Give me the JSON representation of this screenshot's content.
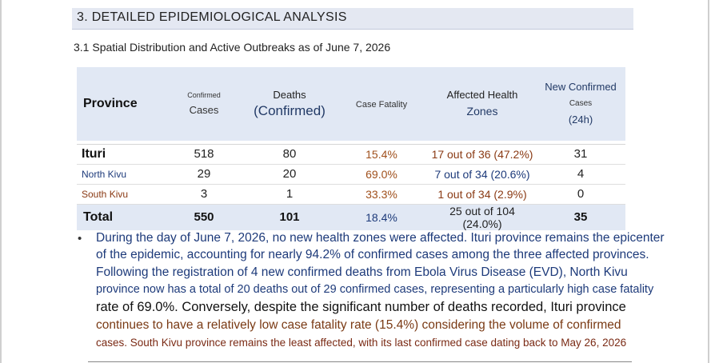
{
  "section": {
    "title": "3. DETAILED EPIDEMIOLOGICAL ANALYSIS"
  },
  "subtitle": "3.1 Spatial Distribution and Active Outbreaks as of June 7, 2026",
  "table": {
    "headers": {
      "province": "Province",
      "confirmed_small": "Confirmed",
      "confirmed_main": "Cases",
      "deaths_main": "Deaths",
      "deaths_sub": "(Confirmed)",
      "cfr": "Case Fatality",
      "zones_main": "Affected Health",
      "zones_sub": "Zones",
      "new_main": "New Confirmed",
      "new_mid": "Cases",
      "new_sub": "(24h)"
    },
    "rows": [
      {
        "province": "Ituri",
        "cases": "518",
        "deaths": "80",
        "cfr": "15.4%",
        "zones": "17 out of 36 (47.2%)",
        "new": "31"
      },
      {
        "province": "North Kivu",
        "cases": "29",
        "deaths": "20",
        "cfr": "69.0%",
        "zones": "7 out of 34 (20.6%)",
        "new": "4"
      },
      {
        "province": "South Kivu",
        "cases": "3",
        "deaths": "1",
        "cfr": "33.3%",
        "zones": "1 out of 34 (2.9%)",
        "new": "0"
      }
    ],
    "total": {
      "label": "Total",
      "cases": "550",
      "deaths": "101",
      "cfr": "18.4%",
      "zones": "25 out of 104 (24.0%)",
      "new": "35"
    }
  },
  "bullet": {
    "symbol": "•",
    "lines": [
      "During the day of June 7, 2026, no new health zones were affected. Ituri province remains the epicenter",
      "of the epidemic, accounting for nearly 94.2% of confirmed cases among the three affected provinces.",
      "Following the registration of 4 new confirmed deaths from Ebola Virus Disease (EVD), North Kivu",
      "province now has a total of 20 deaths out of 29 confirmed cases, representing a particularly high case fatality",
      "rate of 69.0%. Conversely, despite the significant number of deaths recorded, Ituri province",
      "continues to have a relatively low case fatality rate (15.4%) considering the volume of confirmed",
      "cases. South Kivu province remains the least affected, with its last confirmed case dating back to May 26, 2026"
    ]
  },
  "colors": {
    "header_bg": "#e1e8f4",
    "section_bg": "#e4e8f2",
    "blue_text": "#1d3a7a",
    "brown_text": "#8a3a14"
  }
}
